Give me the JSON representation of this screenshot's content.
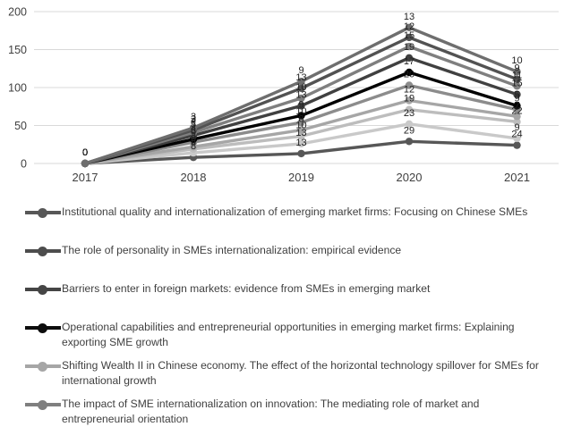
{
  "chart_data": {
    "type": "line",
    "stacked": true,
    "title": "",
    "xlabel": "",
    "ylabel": "",
    "x_categories": [
      "2017",
      "2018",
      "2019",
      "2020",
      "2021"
    ],
    "y_axis": {
      "min": 0,
      "max": 200,
      "tick_interval": 50,
      "ticks": [
        0,
        50,
        100,
        150,
        200
      ]
    },
    "grid": true,
    "data_labels": true,
    "legend_position": "bottom",
    "series": [
      {
        "name": "Institutional quality and internationalization of emerging market firms: Focusing on Chinese SMEs",
        "color": "#575757",
        "values": [
          0,
          8,
          13,
          29,
          24
        ]
      },
      {
        "name": "The role of personality in SMEs internationalization: empirical evidence",
        "color": "#c9c9c9",
        "values": [
          0,
          6,
          13,
          23,
          9
        ]
      },
      {
        "name": "Barriers to enter in foreign markets: evidence from SMEs in emerging market",
        "color": "#bdbdbd",
        "values": [
          0,
          5,
          10,
          19,
          22
        ]
      },
      {
        "name": "Operational capabilities and entrepreneurial opportunities in emerging market firms: Explaining exporting SME growth",
        "color": "#a6a6a6",
        "values": [
          0,
          3,
          8,
          12,
          7
        ]
      },
      {
        "name": "Shifting Wealth II in Chinese economy. The effect of the horizontal technology spillover for SMEs for international growth",
        "color": "#8c8c8c",
        "values": [
          0,
          6,
          10,
          20,
          9
        ]
      },
      {
        "name": "The impact of SME internationalization on innovation: The mediating role of market and entrepreneurial orientation",
        "color": "#000000",
        "values": [
          0,
          4,
          9,
          17,
          5
        ]
      },
      {
        "name": null,
        "color": "#404040",
        "values": [
          0,
          5,
          13,
          19,
          15
        ]
      },
      {
        "name": null,
        "color": "#7f7f7f",
        "values": [
          0,
          4,
          10,
          15,
          11
        ]
      },
      {
        "name": null,
        "color": "#525252",
        "values": [
          0,
          3,
          13,
          12,
          9
        ]
      },
      {
        "name": null,
        "color": "#6e6e6e",
        "values": [
          0,
          3,
          9,
          13,
          10
        ]
      }
    ]
  },
  "legend": {
    "items": [
      {
        "label": "Institutional quality and internationalization of emerging market firms: Focusing on Chinese SMEs",
        "color": "#575757"
      },
      {
        "label": "The role of personality in SMEs internationalization: empirical evidence",
        "color": "#4d4d4d"
      },
      {
        "label": "Barriers to enter in foreign markets: evidence from SMEs in emerging market",
        "color": "#454545"
      },
      {
        "label": "Operational capabilities and entrepreneurial opportunities in emerging market firms: Explaining exporting SME growth",
        "color": "#0d0d0d"
      },
      {
        "label": "Shifting Wealth II in Chinese economy. The effect of the horizontal technology spillover for SMEs for international growth",
        "color": "#a6a6a6"
      },
      {
        "label": "The impact of SME internationalization on innovation: The mediating role of market and entrepreneurial orientation",
        "color": "#7f7f7f"
      }
    ]
  },
  "style_colors": {
    "gridline": "#d9d9d9",
    "axis_text": "#404040",
    "data_label_text": "#1f1f1f",
    "background": "#ffffff"
  }
}
